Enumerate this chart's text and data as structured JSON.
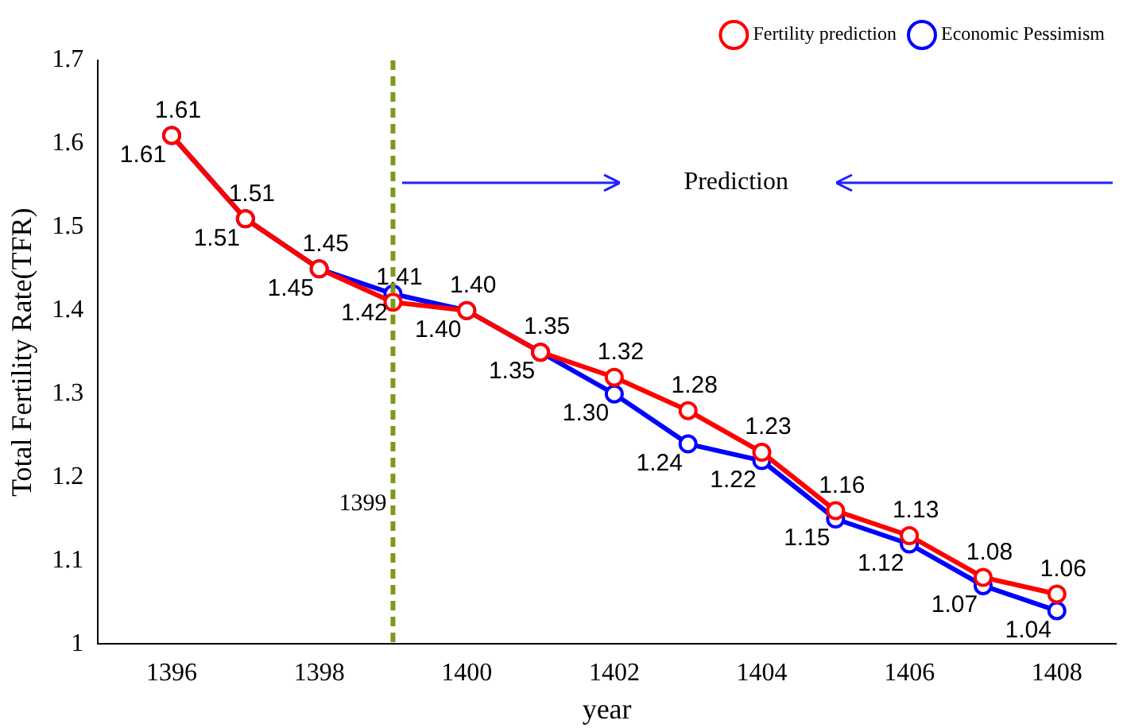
{
  "chart_data": {
    "type": "line",
    "xlabel": "year",
    "ylabel": "Total Fertility Rate(TFR)",
    "x": [
      1396,
      1397,
      1398,
      1399,
      1400,
      1401,
      1402,
      1403,
      1404,
      1405,
      1406,
      1407,
      1408
    ],
    "series": [
      {
        "name": "Fertility prediction",
        "color": "#ff0000",
        "values": [
          1.61,
          1.51,
          1.45,
          1.41,
          1.4,
          1.35,
          1.32,
          1.28,
          1.23,
          1.16,
          1.13,
          1.08,
          1.06
        ],
        "value_labels": [
          "1.61",
          "1.51",
          "1.45",
          "1.41",
          "1.40",
          "1.35",
          "1.32",
          "1.28",
          "1.23",
          "1.16",
          "1.13",
          "1.08",
          "1.06"
        ]
      },
      {
        "name": "Economic Pessimism",
        "color": "#0000ff",
        "values": [
          1.61,
          1.51,
          1.45,
          1.42,
          1.4,
          1.35,
          1.3,
          1.24,
          1.22,
          1.15,
          1.12,
          1.07,
          1.04
        ],
        "value_labels": [
          "1.61",
          "1.51",
          "1.45",
          "1.42",
          "1.40",
          "1.35",
          "1.30",
          "1.24",
          "1.22",
          "1.15",
          "1.12",
          "1.07",
          "1.04"
        ]
      }
    ],
    "xlim": [
      1395,
      1408.8
    ],
    "xticks": [
      1396,
      1398,
      1400,
      1402,
      1404,
      1406,
      1408
    ],
    "ylim": [
      1,
      1.7
    ],
    "yticks": [
      1,
      1.1,
      1.2,
      1.3,
      1.4,
      1.5,
      1.6,
      1.7
    ],
    "ref_lines": [
      {
        "axis": "x",
        "value": 1399,
        "label": "1399",
        "color": "#7a9a1a",
        "line_style": "dashed"
      }
    ],
    "annotations": [
      "Prediction"
    ],
    "grid": false,
    "legend": "top right",
    "marker": "circle",
    "line_style": "solid"
  }
}
